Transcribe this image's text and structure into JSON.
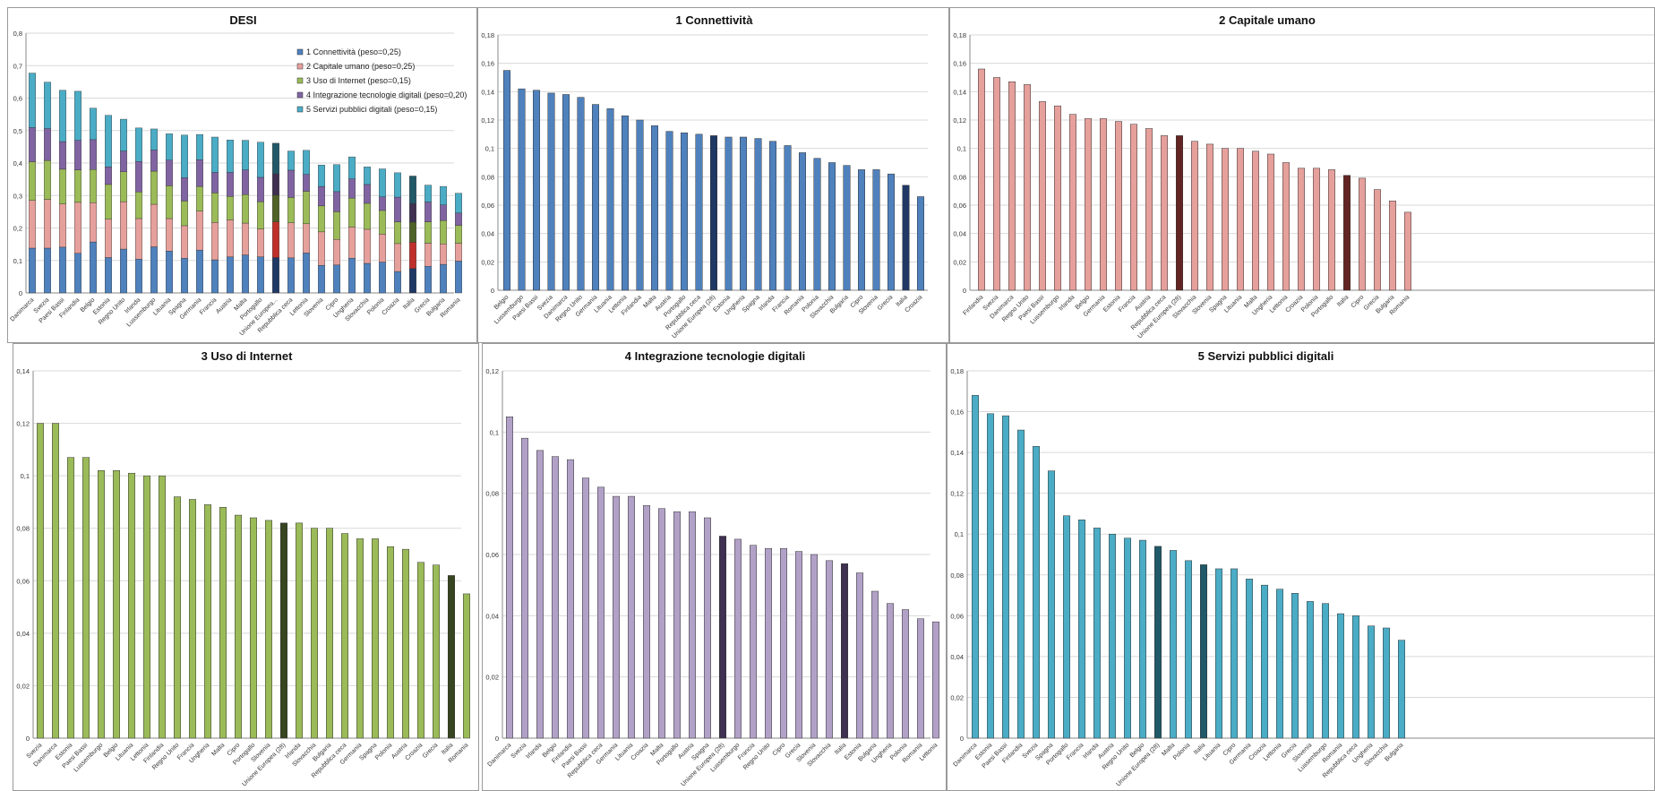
{
  "charts": [
    {
      "type": "bar",
      "stacked": true,
      "title": "DESI",
      "ylim": [
        0,
        0.8
      ],
      "ytick_labels": [
        "0",
        "0,1",
        "0,2",
        "0,3",
        "0,4",
        "0,5",
        "0,6",
        "0,7",
        "0,8"
      ],
      "grid": true,
      "legend_position": "top-right",
      "categories": [
        "Danimarca",
        "Svezia",
        "Paesi Bassi",
        "Finlandia",
        "Belgio",
        "Estonia",
        "Regno Unito",
        "Irlanda",
        "Lussemburgo",
        "Lituania",
        "Spagna",
        "Germania",
        "Francia",
        "Austria",
        "Malta",
        "Portogallo",
        "Unione Europea...",
        "Repubblica ceca",
        "Lettonia",
        "Slovenia",
        "Cipro",
        "Ungheria",
        "Slovacchia",
        "Polonia",
        "Croazia",
        "Italia",
        "Grecia",
        "Bulgaria",
        "Romania"
      ],
      "highlight_indices": [
        16,
        25
      ],
      "series": [
        {
          "name": "1 Connettività (peso=0,25)",
          "color": "#4f81bd",
          "dark": "#1f3864",
          "values": [
            0.138,
            0.138,
            0.141,
            0.122,
            0.157,
            0.109,
            0.135,
            0.104,
            0.142,
            0.129,
            0.107,
            0.132,
            0.102,
            0.111,
            0.117,
            0.111,
            0.109,
            0.108,
            0.123,
            0.085,
            0.086,
            0.107,
            0.091,
            0.095,
            0.066,
            0.075,
            0.082,
            0.088,
            0.098
          ]
        },
        {
          "name": "2 Capitale umano (peso=0,25)",
          "color": "#e6a09c",
          "dark": "#c0302a",
          "values": [
            0.147,
            0.15,
            0.133,
            0.157,
            0.121,
            0.118,
            0.146,
            0.125,
            0.131,
            0.1,
            0.1,
            0.12,
            0.115,
            0.114,
            0.098,
            0.086,
            0.11,
            0.108,
            0.09,
            0.103,
            0.079,
            0.096,
            0.105,
            0.086,
            0.086,
            0.081,
            0.071,
            0.063,
            0.055
          ]
        },
        {
          "name": "3 Uso di Internet (peso=0,15)",
          "color": "#9bbb59",
          "dark": "#4f6228",
          "values": [
            0.119,
            0.12,
            0.107,
            0.1,
            0.102,
            0.107,
            0.092,
            0.082,
            0.102,
            0.101,
            0.076,
            0.076,
            0.091,
            0.072,
            0.088,
            0.084,
            0.082,
            0.078,
            0.1,
            0.08,
            0.085,
            0.089,
            0.08,
            0.073,
            0.067,
            0.062,
            0.066,
            0.072,
            0.055
          ]
        },
        {
          "name": "4 Integrazione tecnologie digitali (peso=0,20)",
          "color": "#8064a2",
          "dark": "#3f3151",
          "values": [
            0.105,
            0.098,
            0.085,
            0.091,
            0.092,
            0.054,
            0.064,
            0.094,
            0.065,
            0.079,
            0.072,
            0.082,
            0.063,
            0.074,
            0.076,
            0.075,
            0.066,
            0.084,
            0.052,
            0.06,
            0.062,
            0.059,
            0.058,
            0.042,
            0.076,
            0.057,
            0.061,
            0.048,
            0.038
          ]
        },
        {
          "name": "5 Servizi pubblici digitali (peso=0,15)",
          "color": "#4bacc6",
          "dark": "#215968",
          "values": [
            0.168,
            0.143,
            0.158,
            0.151,
            0.097,
            0.159,
            0.098,
            0.103,
            0.065,
            0.081,
            0.131,
            0.078,
            0.109,
            0.1,
            0.091,
            0.108,
            0.094,
            0.059,
            0.074,
            0.066,
            0.083,
            0.068,
            0.054,
            0.086,
            0.075,
            0.085,
            0.052,
            0.057,
            0.061
          ]
        }
      ]
    },
    {
      "type": "bar",
      "title": "1 Connettività",
      "ylim": [
        0,
        0.18
      ],
      "ytick_labels": [
        "0",
        "0,02",
        "0,04",
        "0,06",
        "0,08",
        "0,1",
        "0,12",
        "0,14",
        "0,16",
        "0,18"
      ],
      "color": "#4f81bd",
      "dark": "#1f3864",
      "categories": [
        "Belgio",
        "Lussemburgo",
        "Paesi Bassi",
        "Svezia",
        "Danimarca",
        "Regno Unito",
        "Germania",
        "Lituania",
        "Lettonia",
        "Finlandia",
        "Malta",
        "Austria",
        "Portogallo",
        "Repubblica ceca",
        "Unione Europea (28)",
        "Estonia",
        "Ungheria",
        "Spagna",
        "Irlanda",
        "Francia",
        "Romania",
        "Polonia",
        "Slovacchia",
        "Bulgaria",
        "Cipro",
        "Slovenia",
        "Grecia",
        "Italia",
        "Croazia"
      ],
      "values": [
        0.155,
        0.142,
        0.141,
        0.139,
        0.138,
        0.136,
        0.131,
        0.128,
        0.123,
        0.12,
        0.116,
        0.112,
        0.111,
        0.11,
        0.109,
        0.108,
        0.108,
        0.107,
        0.105,
        0.102,
        0.097,
        0.093,
        0.09,
        0.088,
        0.085,
        0.085,
        0.082,
        0.074,
        0.066
      ],
      "highlight_indices": [
        14,
        27
      ]
    },
    {
      "type": "bar",
      "title": "2 Capitale umano",
      "ylim": [
        0,
        0.18
      ],
      "ytick_labels": [
        "0",
        "0,02",
        "0,04",
        "0,06",
        "0,08",
        "0,1",
        "0,12",
        "0,14",
        "0,16",
        "0,18"
      ],
      "color": "#e6a09c",
      "dark": "#632523",
      "categories": [
        "Finlandia",
        "Svezia",
        "Danimarca",
        "Regno Unito",
        "Paesi Bassi",
        "Lussemburgo",
        "Irlanda",
        "Belgio",
        "Germania",
        "Estonia",
        "Francia",
        "Austria",
        "Repubblica ceca",
        "Unione Europea (28)",
        "Slovacchia",
        "Slovenia",
        "Spagna",
        "Lituania",
        "Malta",
        "Ungheria",
        "Lettonia",
        "Croazia",
        "Polonia",
        "Portogallo",
        "Italia",
        "Cipro",
        "Grecia",
        "Bulgaria",
        "Romania"
      ],
      "values": [
        0.156,
        0.15,
        0.147,
        0.145,
        0.133,
        0.13,
        0.124,
        0.121,
        0.121,
        0.119,
        0.117,
        0.114,
        0.109,
        0.109,
        0.105,
        0.103,
        0.1,
        0.1,
        0.098,
        0.096,
        0.09,
        0.086,
        0.086,
        0.085,
        0.081,
        0.079,
        0.071,
        0.063,
        0.055
      ],
      "highlight_indices": [
        13,
        24
      ]
    },
    {
      "type": "bar",
      "title": "3 Uso di Internet",
      "ylim": [
        0,
        0.14
      ],
      "ytick_labels": [
        "0",
        "0,02",
        "0,04",
        "0,06",
        "0,08",
        "0,1",
        "0,12",
        "0,14"
      ],
      "color": "#9bbb59",
      "dark": "#374520",
      "categories": [
        "Svezia",
        "Danimarca",
        "Estonia",
        "Paesi Bassi",
        "Lussemburgo",
        "Belgio",
        "Lituania",
        "Lettonia",
        "Finlandia",
        "Regno Unito",
        "Francia",
        "Ungheria",
        "Malta",
        "Cipro",
        "Portogallo",
        "Slovenia",
        "Unione Europea (28)",
        "Irlanda",
        "Slovacchia",
        "Bulgaria",
        "Repubblica ceca",
        "Germania",
        "Spagna",
        "Polonia",
        "Austria",
        "Croazia",
        "Grecia",
        "Italia",
        "Romania"
      ],
      "values": [
        0.12,
        0.12,
        0.107,
        0.107,
        0.102,
        0.102,
        0.101,
        0.1,
        0.1,
        0.092,
        0.091,
        0.089,
        0.088,
        0.085,
        0.084,
        0.083,
        0.082,
        0.082,
        0.08,
        0.08,
        0.078,
        0.076,
        0.076,
        0.073,
        0.072,
        0.067,
        0.066,
        0.062,
        0.055
      ],
      "highlight_indices": [
        16,
        27
      ]
    },
    {
      "type": "bar",
      "title": "4 Integrazione tecnologie digitali",
      "ylim": [
        0,
        0.12
      ],
      "ytick_labels": [
        "0",
        "0,02",
        "0,04",
        "0,06",
        "0,08",
        "0,1",
        "0,12"
      ],
      "color": "#b2a1c7",
      "dark": "#3f3151",
      "categories": [
        "Danimarca",
        "Svezia",
        "Irlanda",
        "Belgio",
        "Finlandia",
        "Paesi Bassi",
        "Repubblica ceca",
        "Germania",
        "Lituania",
        "Croazia",
        "Malta",
        "Portogallo",
        "Austria",
        "Spagna",
        "Unione Europea (28)",
        "Lussemburgo",
        "Francia",
        "Regno Unito",
        "Cipro",
        "Grecia",
        "Slovenia",
        "Slovacchia",
        "Italia",
        "Estonia",
        "Bulgaria",
        "Ungheria",
        "Polonia",
        "Romania",
        "Lettonia"
      ],
      "values": [
        0.105,
        0.098,
        0.094,
        0.092,
        0.091,
        0.085,
        0.082,
        0.079,
        0.079,
        0.076,
        0.075,
        0.074,
        0.074,
        0.072,
        0.066,
        0.065,
        0.063,
        0.062,
        0.062,
        0.061,
        0.06,
        0.058,
        0.057,
        0.054,
        0.048,
        0.044,
        0.042,
        0.039,
        0.038
      ],
      "highlight_indices": [
        14,
        22
      ]
    },
    {
      "type": "bar",
      "title": "5 Servizi pubblici digitali",
      "ylim": [
        0,
        0.18
      ],
      "ytick_labels": [
        "0",
        "0,02",
        "0,04",
        "0,06",
        "0,08",
        "0,1",
        "0,12",
        "0,14",
        "0,16",
        "0,18"
      ],
      "color": "#4bacc6",
      "dark": "#215968",
      "categories": [
        "Danimarca",
        "Estonia",
        "Paesi Bassi",
        "Finlandia",
        "Svezia",
        "Spagna",
        "Portogallo",
        "Francia",
        "Irlanda",
        "Austria",
        "Regno Unito",
        "Belgio",
        "Unione Europea (28)",
        "Malta",
        "Polonia",
        "Italia",
        "Lituania",
        "Cipro",
        "Germania",
        "Croazia",
        "Lettonia",
        "Grecia",
        "Slovenia",
        "Lussemburgo",
        "Romania",
        "Repubblica ceca",
        "Ungheria",
        "Slovacchia",
        "Bulgaria"
      ],
      "values": [
        0.168,
        0.159,
        0.158,
        0.151,
        0.143,
        0.131,
        0.109,
        0.107,
        0.103,
        0.1,
        0.098,
        0.097,
        0.094,
        0.092,
        0.087,
        0.085,
        0.083,
        0.083,
        0.078,
        0.075,
        0.073,
        0.071,
        0.067,
        0.066,
        0.061,
        0.06,
        0.055,
        0.054,
        0.048
      ],
      "highlight_indices": [
        12,
        15
      ]
    }
  ]
}
